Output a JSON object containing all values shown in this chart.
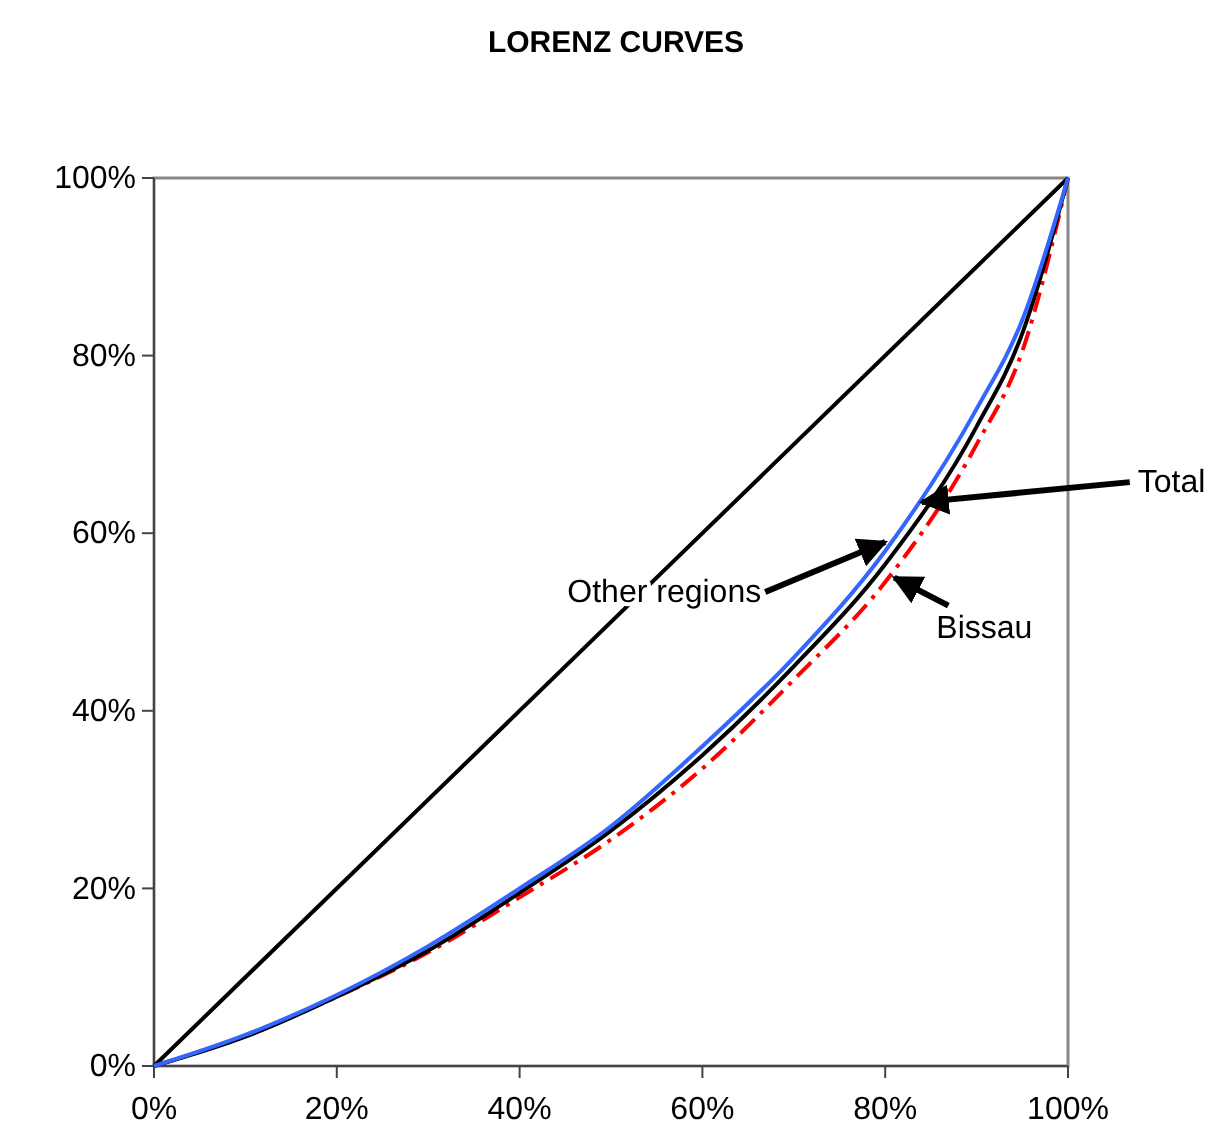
{
  "chart_data": {
    "type": "line",
    "title": "LORENZ CURVES",
    "x": [
      0,
      10,
      20,
      30,
      40,
      50,
      60,
      70,
      80,
      90,
      95,
      100
    ],
    "xlim": [
      0,
      100
    ],
    "ylim": [
      0,
      100
    ],
    "xticks": [
      {
        "value": 0,
        "label": "0%"
      },
      {
        "value": 20,
        "label": "20%"
      },
      {
        "value": 40,
        "label": "40%"
      },
      {
        "value": 60,
        "label": "60%"
      },
      {
        "value": 80,
        "label": "80%"
      },
      {
        "value": 100,
        "label": "100%"
      }
    ],
    "yticks": [
      {
        "value": 0,
        "label": "0%"
      },
      {
        "value": 20,
        "label": "20%"
      },
      {
        "value": 40,
        "label": "40%"
      },
      {
        "value": 60,
        "label": "60%"
      },
      {
        "value": 80,
        "label": "80%"
      },
      {
        "value": 100,
        "label": "100%"
      }
    ],
    "grid": false,
    "marker": "none",
    "series": [
      {
        "color": "#000000",
        "x": [
          0,
          100
        ],
        "values": [
          0,
          100
        ]
      },
      {
        "color": "#ff0000",
        "line_style": "dashed",
        "values": [
          0,
          3.4,
          7.8,
          12.8,
          19,
          25.5,
          33.5,
          43.5,
          54.5,
          70,
          80.5,
          100
        ]
      },
      {
        "color": "#000000",
        "values": [
          0,
          3.3,
          7.8,
          13,
          19.5,
          26.5,
          35,
          45,
          56.5,
          72,
          82.5,
          100
        ]
      },
      {
        "color": "#3366ff",
        "values": [
          0,
          3.5,
          8,
          13.5,
          20,
          27,
          36,
          46,
          58,
          74,
          84,
          100
        ]
      }
    ],
    "annotations": [
      {
        "text": "Other regions",
        "x": 80,
        "y": 59
      },
      {
        "text": "Total",
        "x": 84,
        "y": 63.5
      },
      {
        "text": "Bissau",
        "x": 81,
        "y": 55
      }
    ]
  }
}
